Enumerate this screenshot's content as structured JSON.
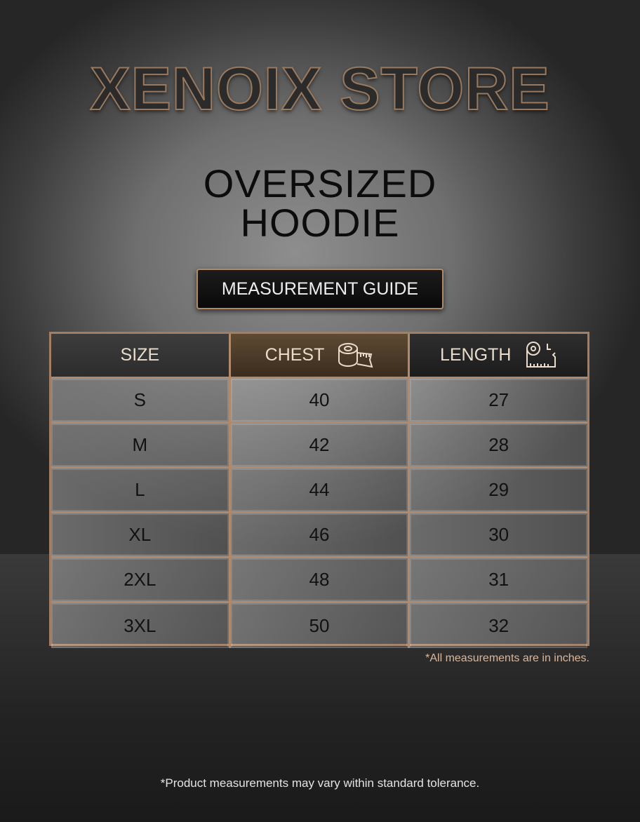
{
  "brand": "XENOIX STORE",
  "product": {
    "line1": "OVERSIZED",
    "line2": "HOODIE"
  },
  "guide_label": "MEASUREMENT GUIDE",
  "table": {
    "headers": [
      {
        "label": "SIZE"
      },
      {
        "label": "CHEST",
        "icon": "tape-measure-icon"
      },
      {
        "label": "LENGTH",
        "icon": "tape-measure-length-icon"
      }
    ],
    "rows": [
      [
        "S",
        "40",
        "27"
      ],
      [
        "M",
        "42",
        "28"
      ],
      [
        "L",
        "44",
        "29"
      ],
      [
        "XL",
        "46",
        "30"
      ],
      [
        "2XL",
        "48",
        "31"
      ],
      [
        "3XL",
        "50",
        "32"
      ]
    ]
  },
  "units_note": "*All measurements are in inches.",
  "footer_note": "*Product measurements may vary within standard tolerance.",
  "colors": {
    "accent": "#b08a68",
    "note": "#d9b89e"
  }
}
